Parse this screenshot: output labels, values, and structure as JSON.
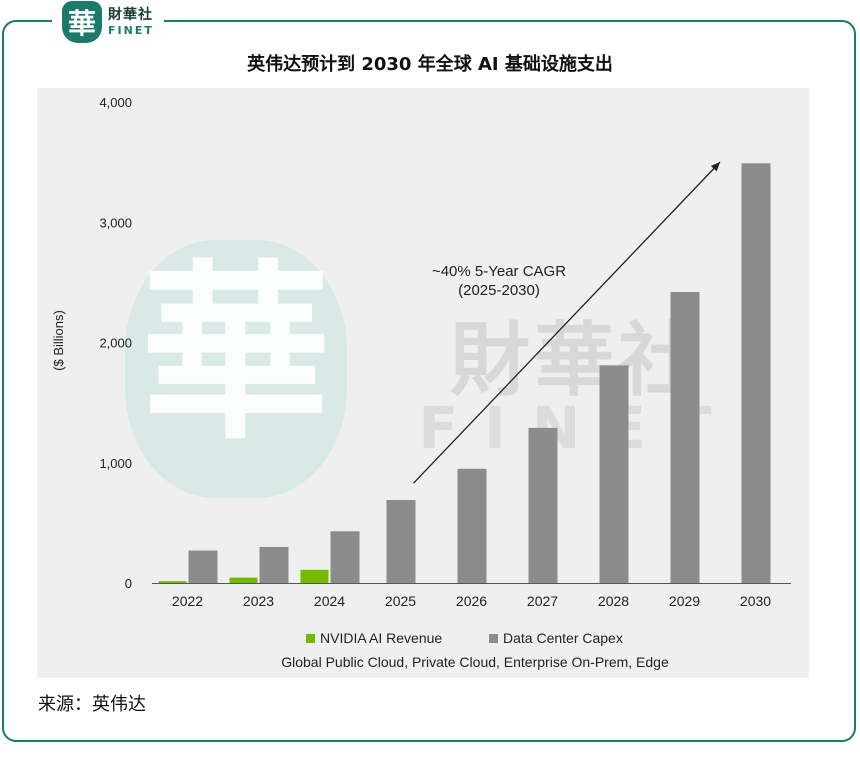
{
  "header": {
    "logo_cn": "財華社",
    "logo_en": "FINET",
    "logo_seal_char": "華"
  },
  "title": "英伟达预计到 2030 年全球 AI 基础设施支出",
  "source": "来源：英伟达",
  "watermark": {
    "cn": "財華社",
    "en": "FINET",
    "seal_char": "華"
  },
  "colors": {
    "frame": "#1c7a6a",
    "nvidia": "#76b900",
    "capex": "#8c8c8c",
    "chart_bg": "#efefef"
  },
  "chart_data": {
    "type": "bar",
    "categories": [
      "2022",
      "2023",
      "2024",
      "2025",
      "2026",
      "2027",
      "2028",
      "2029",
      "2030"
    ],
    "series": [
      {
        "name": "NVIDIA AI Revenue",
        "color": "#76b900",
        "values": [
          15,
          45,
          110,
          null,
          null,
          null,
          null,
          null,
          null
        ]
      },
      {
        "name": "Data Center Capex",
        "color": "#8c8c8c",
        "values": [
          270,
          300,
          430,
          690,
          950,
          1290,
          1810,
          2420,
          3490
        ]
      }
    ],
    "ylabel": "($ Billions)",
    "ylim": [
      0,
      4000
    ],
    "yticks": [
      0,
      1000,
      2000,
      3000,
      4000
    ],
    "ytick_labels": [
      "0",
      "1,000",
      "2,000",
      "3,000",
      "4,000"
    ],
    "legend_position": "bottom",
    "legend_subtitle": "Global Public Cloud, Private Cloud, Enterprise On-Prem, Edge",
    "annotation": {
      "line1": "~40% 5-Year CAGR",
      "line2": "(2025-2030)"
    },
    "arrow": {
      "from": {
        "x": "2025",
        "y": 830
      },
      "to": {
        "x": "2029.5",
        "y": 3500
      }
    },
    "grid": false
  }
}
